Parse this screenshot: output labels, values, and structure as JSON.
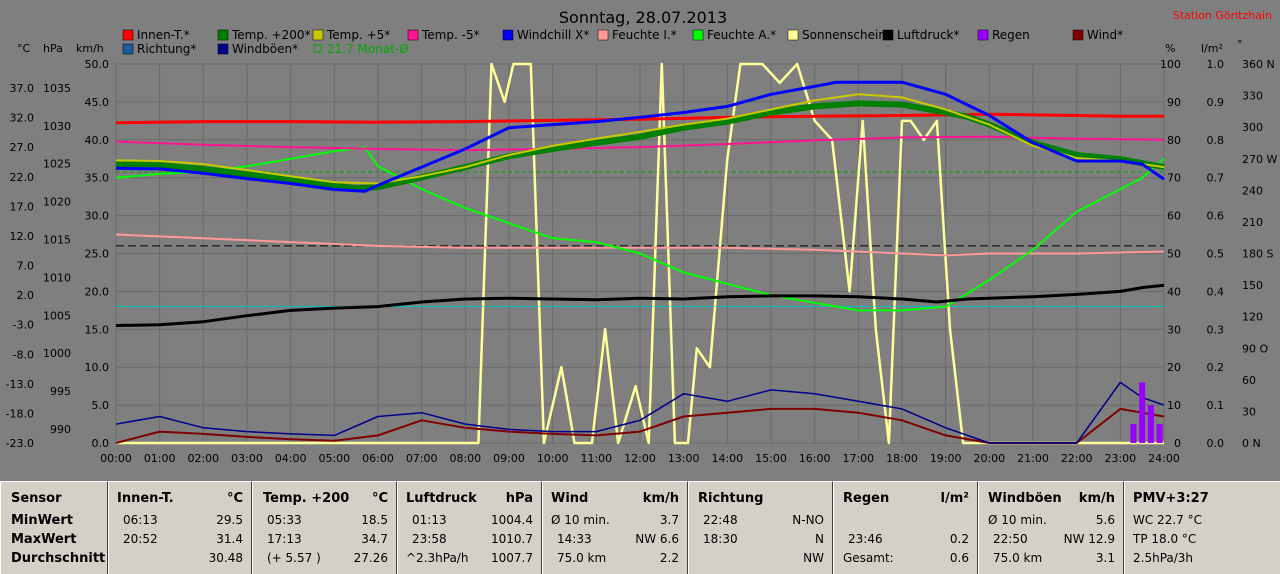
{
  "header": {
    "title": "Sonntag, 28.07.2013",
    "station": "Station Göritzhain"
  },
  "axis_units": {
    "left": [
      "°C",
      "hPa",
      "km/h"
    ],
    "right": [
      "%",
      "l/m²",
      "°"
    ]
  },
  "colors": {
    "background": "#7f7f7f",
    "plot_bg": "#7f7f7f",
    "grid": "#5a5a5a"
  },
  "legend": [
    {
      "label": "Innen-T.*",
      "color": "#ff0000"
    },
    {
      "label": "Temp. +200*",
      "color": "#008000"
    },
    {
      "label": "Temp. +5*",
      "color": "#c8c800"
    },
    {
      "label": "Temp. -5*",
      "color": "#ff1493"
    },
    {
      "label": "Windchill X*",
      "color": "#0000ff"
    },
    {
      "label": "Feuchte I.*",
      "color": "#ff9999"
    },
    {
      "label": "Feuchte A.*",
      "color": "#00ff00"
    },
    {
      "label": "Sonnenschein",
      "color": "#ffff99"
    },
    {
      "label": "Luftdruck*",
      "color": "#000000"
    },
    {
      "label": "Regen",
      "color": "#9900ff"
    },
    {
      "label": "Wind*",
      "color": "#800000"
    },
    {
      "label": "Richtung*",
      "color": "#1e5aa0"
    },
    {
      "label": "Windböen*",
      "color": "#00008b"
    },
    {
      "label": "21.7 Monat-Ø",
      "color": "#00aa00",
      "dashed": true
    }
  ],
  "chart_data": {
    "type": "line",
    "x_ticks": [
      "00:00",
      "01:00",
      "02:00",
      "03:00",
      "04:00",
      "05:00",
      "06:00",
      "07:00",
      "08:00",
      "09:00",
      "10:00",
      "11:00",
      "12:00",
      "13:00",
      "14:00",
      "15:00",
      "16:00",
      "17:00",
      "18:00",
      "19:00",
      "20:00",
      "21:00",
      "22:00",
      "23:00",
      "24:00"
    ],
    "y_axes": {
      "temp_c": [
        "37.0",
        "32.0",
        "27.0",
        "22.0",
        "17.0",
        "12.0",
        "7.0",
        "2.0",
        "-3.0",
        "-8.0",
        "-13.0",
        "-18.0",
        "-23.0"
      ],
      "pressure_hpa": [
        "1035",
        "1030",
        "1025",
        "1020",
        "1015",
        "1010",
        "1005",
        "1000",
        "995",
        "990"
      ],
      "wind_kmh": [
        "50.0",
        "45.0",
        "40.0",
        "35.0",
        "30.0",
        "25.0",
        "20.0",
        "15.0",
        "10.0",
        "5.0",
        "0.0"
      ],
      "humidity_pct": [
        "100",
        "90",
        "80",
        "70",
        "60",
        "50",
        "40",
        "30",
        "20",
        "10",
        "0"
      ],
      "rain_lm2": [
        "1.0",
        "0.9",
        "0.8",
        "0.7",
        "0.6",
        "0.5",
        "0.4",
        "0.3",
        "0.2",
        "0.1",
        "0.0"
      ],
      "direction_deg": [
        "360 N",
        "330",
        "300",
        "270 W",
        "240",
        "210",
        "180 S",
        "150",
        "120",
        "90 O",
        "60",
        "30",
        "0 N"
      ]
    },
    "ranges": {
      "wind_kmh": [
        0,
        50
      ],
      "humidity_pct": [
        0,
        100
      ],
      "temp_c": [
        -23,
        39.5
      ],
      "pressure_hpa": [
        990,
        1040
      ]
    },
    "reference_lines": [
      {
        "name": "21.7 Monat-Ø",
        "temp_c": 21.7
      },
      {
        "temp_c": 9.5
      }
    ],
    "series": [
      {
        "name": "Innen-T.*",
        "unit": "°C",
        "x": [
          0,
          2,
          4,
          6,
          8,
          10,
          12,
          14,
          16,
          18,
          20,
          21,
          22,
          23,
          24
        ],
        "y": [
          29.8,
          30.0,
          30.0,
          29.9,
          30.0,
          30.2,
          30.4,
          30.7,
          30.9,
          31.0,
          31.2,
          31.1,
          31.0,
          30.9,
          30.9
        ]
      },
      {
        "name": "Temp. +200*",
        "unit": "°C",
        "x": [
          0,
          1,
          2,
          3,
          4,
          5,
          5.5,
          6,
          7,
          8,
          9,
          10,
          11,
          12,
          13,
          14,
          15,
          16,
          17,
          18,
          19,
          19.5,
          20,
          21,
          22,
          23,
          24
        ],
        "y": [
          23.0,
          22.8,
          22.2,
          21.3,
          20.5,
          19.5,
          19.0,
          19.2,
          20.8,
          22.5,
          24.3,
          25.5,
          26.5,
          27.5,
          29.0,
          30.0,
          31.5,
          32.5,
          33.0,
          32.8,
          31.5,
          30.8,
          29.5,
          26.5,
          24.5,
          23.8,
          22.5
        ]
      },
      {
        "name": "Temp. +5*",
        "unit": "°C",
        "x": [
          0,
          1,
          2,
          3,
          4,
          5,
          6,
          7,
          8,
          9,
          10,
          11,
          12,
          13,
          14,
          15,
          16,
          17,
          18,
          19,
          20,
          21,
          22,
          23,
          24
        ],
        "y": [
          23.6,
          23.5,
          23.0,
          22.0,
          21.0,
          20.0,
          19.8,
          21.0,
          22.5,
          24.5,
          26.0,
          27.2,
          28.3,
          29.5,
          30.5,
          32.0,
          33.5,
          34.5,
          34.0,
          32.0,
          29.5,
          26.0,
          24.0,
          23.5,
          22.5
        ]
      },
      {
        "name": "Temp. -5*",
        "unit": "°C",
        "x": [
          0,
          2,
          4,
          6,
          8,
          10,
          12,
          14,
          16,
          18,
          20,
          22,
          24
        ],
        "y": [
          26.7,
          26.2,
          25.8,
          25.5,
          25.3,
          25.5,
          25.8,
          26.3,
          26.9,
          27.4,
          27.5,
          27.2,
          27.0
        ]
      },
      {
        "name": "Windchill X*",
        "unit": "°C",
        "x": [
          0,
          1,
          2,
          3,
          4,
          5,
          5.7,
          6,
          7,
          8,
          9,
          10,
          11,
          12,
          13,
          14,
          15,
          16,
          16.5,
          17,
          18,
          19,
          20,
          21,
          22,
          23,
          23.5,
          24
        ],
        "y": [
          22.3,
          22.2,
          21.5,
          20.6,
          19.8,
          18.8,
          18.5,
          19.5,
          22.5,
          25.5,
          29.0,
          29.5,
          30.0,
          30.7,
          31.5,
          32.5,
          34.5,
          35.8,
          36.5,
          36.5,
          36.5,
          34.5,
          31.0,
          26.5,
          23.5,
          23.5,
          23.0,
          20.5
        ]
      },
      {
        "name": "Feuchte I.*",
        "unit": "%",
        "x": [
          0,
          2,
          4,
          6,
          8,
          10,
          12,
          14,
          16,
          18,
          19,
          20,
          22,
          24
        ],
        "y": [
          55,
          54,
          53,
          52,
          51.5,
          51.5,
          51.5,
          51.5,
          51,
          50,
          49.5,
          50,
          50,
          50.5
        ]
      },
      {
        "name": "Feuchte A.*",
        "unit": "%",
        "x": [
          0,
          1,
          2,
          3,
          4,
          5,
          5.7,
          6,
          7,
          8,
          9,
          10,
          11,
          12,
          13,
          14,
          15,
          16,
          17,
          18,
          19,
          20,
          21,
          22,
          23,
          23.5,
          24
        ],
        "y": [
          70,
          71,
          71.5,
          73,
          75,
          77,
          78,
          73,
          67,
          62,
          58,
          54,
          53,
          50,
          45,
          42,
          39,
          37,
          35,
          35,
          36,
          43,
          51,
          61,
          67,
          70,
          75
        ]
      },
      {
        "name": "Sonnenschein",
        "unit": "%",
        "x": [
          0,
          8.3,
          8.6,
          8.9,
          9.1,
          9.5,
          9.8,
          10.2,
          10.5,
          10.9,
          11.2,
          11.5,
          11.9,
          12.2,
          12.5,
          12.8,
          13.1,
          13.3,
          13.6,
          14.0,
          14.3,
          14.6,
          14.8,
          15.2,
          15.6,
          16.0,
          16.4,
          16.8,
          17.1,
          17.4,
          17.7,
          18.0,
          18.2,
          18.5,
          18.8,
          19.1,
          19.4,
          19.6,
          24
        ],
        "y": [
          0,
          0,
          100,
          90,
          100,
          100,
          0,
          20,
          0,
          0,
          30,
          0,
          15,
          0,
          100,
          0,
          0,
          25,
          20,
          75,
          100,
          100,
          100,
          95,
          100,
          85,
          80,
          40,
          85,
          30,
          0,
          85,
          85,
          80,
          85,
          30,
          0,
          0,
          0
        ]
      },
      {
        "name": "Luftdruck*",
        "unit": "hPa",
        "x": [
          0,
          1,
          2,
          3,
          4,
          5,
          6,
          7,
          8,
          9,
          10,
          11,
          12,
          13,
          14,
          15,
          16,
          17,
          18,
          18.8,
          19.5,
          20,
          21,
          22,
          23,
          23.5,
          24
        ],
        "y": [
          1005.5,
          1005.6,
          1006.0,
          1006.8,
          1007.5,
          1007.8,
          1008.0,
          1008.6,
          1009.0,
          1009.1,
          1009.0,
          1008.9,
          1009.1,
          1009.0,
          1009.3,
          1009.4,
          1009.4,
          1009.3,
          1009.0,
          1008.6,
          1009.0,
          1009.1,
          1009.3,
          1009.6,
          1010.0,
          1010.5,
          1010.8
        ]
      },
      {
        "name": "Wind*",
        "unit": "km/h",
        "x": [
          0,
          1,
          2,
          3,
          4,
          5,
          6,
          7,
          8,
          9,
          10,
          11,
          12,
          13,
          14,
          15,
          16,
          17,
          18,
          19,
          20,
          21,
          22,
          23,
          23.5,
          24
        ],
        "y": [
          0,
          1.5,
          1.2,
          0.8,
          0.5,
          0.3,
          1.0,
          3.0,
          2.0,
          1.5,
          1.2,
          1.0,
          1.5,
          3.5,
          4.0,
          4.5,
          4.5,
          4.0,
          3.0,
          1.0,
          0,
          0,
          0,
          4.5,
          4.0,
          3.5
        ]
      },
      {
        "name": "Windböen*",
        "unit": "km/h",
        "x": [
          0,
          1,
          2,
          3,
          4,
          5,
          6,
          7,
          8,
          9,
          10,
          11,
          12,
          13,
          14,
          15,
          16,
          17,
          18,
          19,
          20,
          21,
          22,
          23,
          23.5,
          24
        ],
        "y": [
          2.5,
          3.5,
          2.0,
          1.5,
          1.2,
          1.0,
          3.5,
          4.0,
          2.5,
          1.8,
          1.5,
          1.5,
          3.0,
          6.5,
          5.5,
          7.0,
          6.5,
          5.5,
          4.5,
          2.0,
          0,
          0,
          0,
          8.0,
          6.0,
          5.0
        ]
      },
      {
        "name": "Regen",
        "unit": "l/m²",
        "x": [
          23.3,
          23.5,
          23.7,
          23.9
        ],
        "y": [
          0.05,
          0.16,
          0.1,
          0.05
        ]
      }
    ]
  },
  "stats": {
    "sensor": {
      "title": "Sensor",
      "rows": [
        "MinWert",
        "MaxWert",
        "Durchschnitt"
      ]
    },
    "innen": {
      "title": "Innen-T.",
      "unit": "°C",
      "rows": [
        [
          "06:13",
          "29.5"
        ],
        [
          "20:52",
          "31.4"
        ],
        [
          "",
          "30.48"
        ]
      ]
    },
    "temp200": {
      "title": "Temp. +200",
      "unit": "°C",
      "rows": [
        [
          "05:33",
          "18.5"
        ],
        [
          "17:13",
          "34.7"
        ],
        [
          "(+ 5.57 )",
          "27.26"
        ]
      ]
    },
    "luftdruck": {
      "title": "Luftdruck",
      "unit": "hPa",
      "rows": [
        [
          "01:13",
          "1004.4"
        ],
        [
          "23:58",
          "1010.7"
        ],
        [
          "^2.3hPa/h",
          "1007.7"
        ]
      ]
    },
    "wind": {
      "title": "Wind",
      "unit": "km/h",
      "rows": [
        [
          "Ø 10 min.",
          "3.7"
        ],
        [
          "14:33",
          "NW 6.6"
        ],
        [
          "75.0 km",
          "2.2"
        ]
      ]
    },
    "richtung": {
      "title": "Richtung",
      "unit": "",
      "rows": [
        [
          "22:48",
          "N-NO"
        ],
        [
          "18:30",
          "N"
        ],
        [
          "",
          "NW"
        ]
      ]
    },
    "regen": {
      "title": "Regen",
      "unit": "l/m²",
      "rows": [
        [
          "",
          ""
        ],
        [
          "23:46",
          "0.2"
        ],
        [
          "Gesamt:",
          "0.6"
        ]
      ]
    },
    "windboeen": {
      "title": "Windböen",
      "unit": "km/h",
      "rows": [
        [
          "Ø 10 min.",
          "5.6"
        ],
        [
          "22:50",
          "NW 12.9"
        ],
        [
          "75.0 km",
          "3.1"
        ]
      ]
    },
    "pmv": {
      "title": "PMV+3:27",
      "rows": [
        "WC 22.7 °C",
        "TP 18.0 °C",
        "2.5hPa/3h"
      ]
    }
  }
}
